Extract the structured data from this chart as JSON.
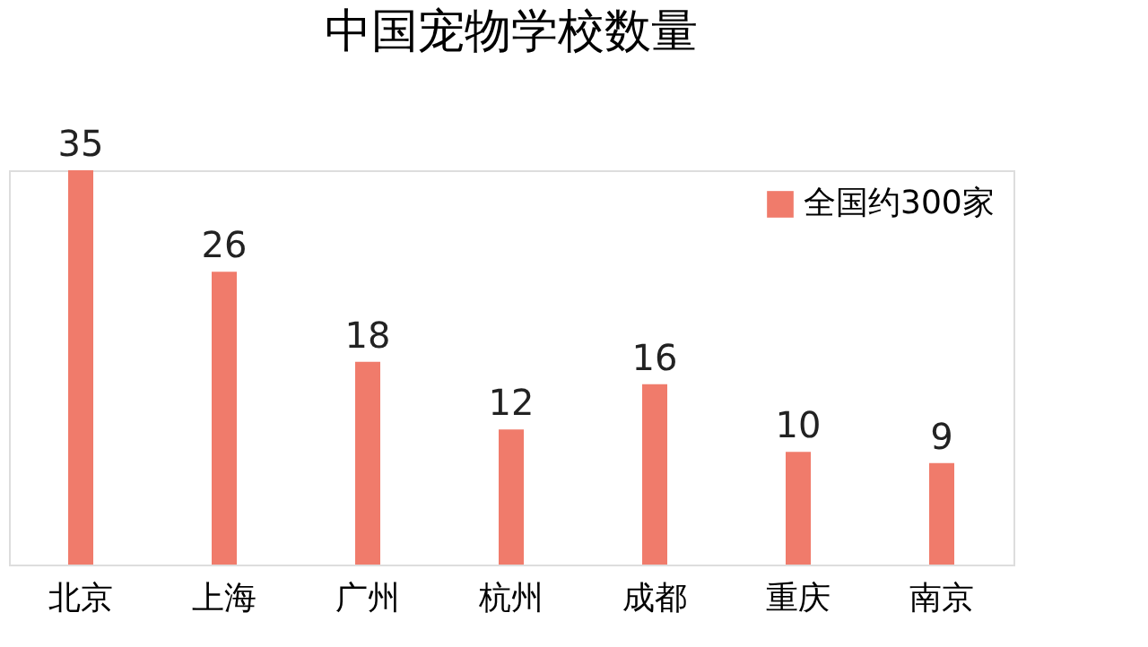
{
  "chart_data": {
    "type": "bar",
    "title": "中国宠物学校数量",
    "categories": [
      "北京",
      "上海",
      "广州",
      "杭州",
      "成都",
      "重庆",
      "南京"
    ],
    "series": [
      {
        "name": "全国约300家",
        "color": "#f07b6b",
        "values": [
          35,
          26,
          18,
          12,
          16,
          10,
          9
        ]
      }
    ],
    "data_labels": true,
    "legend": "top right",
    "grid": false
  }
}
